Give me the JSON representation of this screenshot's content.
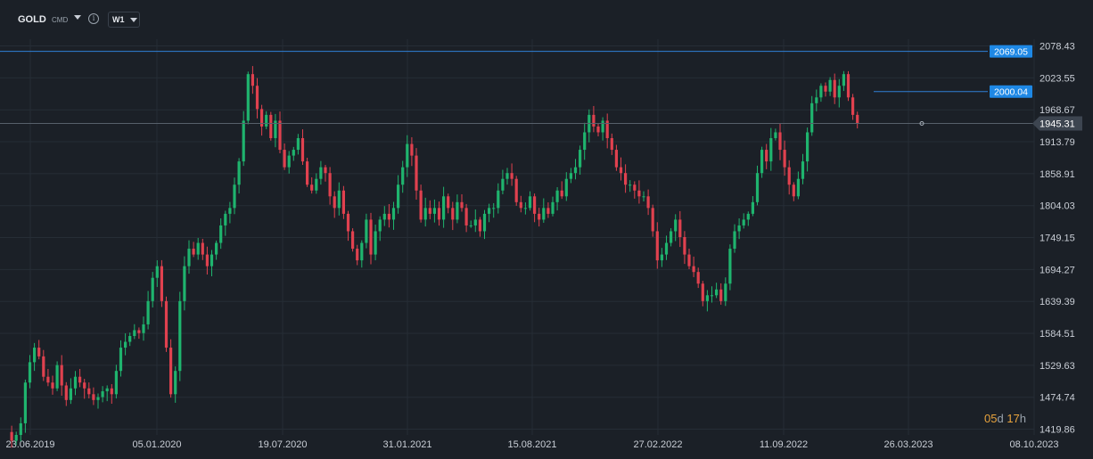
{
  "toolbar": {
    "symbol": "GOLD",
    "exchange": "CMD",
    "info_icon": "info-icon",
    "timeframe": "W1"
  },
  "countdown": {
    "days": "05",
    "days_unit": "d",
    "hours": "17",
    "hours_unit": "h"
  },
  "colors": {
    "background": "#1b2027",
    "grid": "#262d36",
    "up": "#1fb46e",
    "down": "#e0414f",
    "hline": "#2f7fd6",
    "tag": "#1e88e5",
    "current": "#57606b"
  },
  "chart_data": {
    "type": "candlestick",
    "timeframe": "W1",
    "ylim": [
      1410,
      2090
    ],
    "y_ticks": [
      "2078.43",
      "2023.55",
      "1968.67",
      "1913.79",
      "1858.91",
      "1804.03",
      "1749.15",
      "1694.27",
      "1639.39",
      "1584.51",
      "1529.63",
      "1474.74",
      "1419.86"
    ],
    "x_ticks": [
      "23.06.2019",
      "05.01.2020",
      "19.07.2020",
      "31.01.2021",
      "15.08.2021",
      "27.02.2022",
      "11.09.2022",
      "26.03.2023",
      "08.10.2023"
    ],
    "horizontal_lines": [
      {
        "label": "2069.05",
        "value": 2069.05
      },
      {
        "label": "2000.04",
        "value": 2000.04
      }
    ],
    "current_price": {
      "label": "1945.31",
      "value": 1945.31
    },
    "close_path": [
      1415,
      1400,
      1410,
      1430,
      1500,
      1535,
      1560,
      1545,
      1510,
      1500,
      1490,
      1530,
      1495,
      1470,
      1490,
      1510,
      1500,
      1490,
      1480,
      1470,
      1475,
      1485,
      1490,
      1480,
      1520,
      1560,
      1570,
      1580,
      1590,
      1585,
      1600,
      1640,
      1680,
      1700,
      1640,
      1560,
      1480,
      1520,
      1640,
      1700,
      1730,
      1720,
      1740,
      1720,
      1700,
      1720,
      1740,
      1770,
      1790,
      1800,
      1840,
      1880,
      1950,
      2030,
      2010,
      1970,
      1940,
      1960,
      1920,
      1950,
      1900,
      1870,
      1890,
      1900,
      1920,
      1880,
      1840,
      1830,
      1850,
      1870,
      1860,
      1820,
      1800,
      1830,
      1790,
      1760,
      1730,
      1710,
      1740,
      1780,
      1720,
      1760,
      1780,
      1790,
      1780,
      1800,
      1840,
      1870,
      1910,
      1890,
      1830,
      1780,
      1800,
      1790,
      1800,
      1780,
      1820,
      1800,
      1780,
      1810,
      1800,
      1770,
      1770,
      1780,
      1760,
      1790,
      1800,
      1800,
      1830,
      1850,
      1860,
      1850,
      1810,
      1800,
      1800,
      1820,
      1790,
      1780,
      1800,
      1790,
      1810,
      1830,
      1820,
      1850,
      1860,
      1870,
      1900,
      1930,
      1960,
      1940,
      1930,
      1950,
      1920,
      1900,
      1870,
      1860,
      1840,
      1840,
      1830,
      1820,
      1820,
      1800,
      1760,
      1710,
      1720,
      1740,
      1760,
      1780,
      1750,
      1720,
      1700,
      1690,
      1670,
      1640,
      1650,
      1650,
      1660,
      1640,
      1670,
      1730,
      1760,
      1770,
      1780,
      1790,
      1810,
      1860,
      1900,
      1880,
      1920,
      1930,
      1900,
      1870,
      1840,
      1820,
      1850,
      1880,
      1930,
      1980,
      1990,
      2010,
      2000,
      2020,
      1990,
      2010,
      2030,
      1990,
      1960,
      1945.31
    ]
  }
}
